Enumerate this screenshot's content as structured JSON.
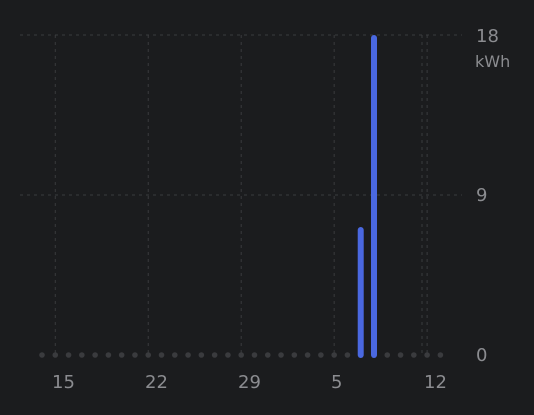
{
  "chart_data": {
    "type": "bar",
    "title": "",
    "xlabel": "",
    "ylabel": "kWh",
    "y_unit": "kWh",
    "ylim": [
      0,
      18
    ],
    "y_ticks": [
      0,
      9,
      18
    ],
    "y_tick_labels": [
      "0",
      "9",
      "18"
    ],
    "x_tick_labels": [
      "15",
      "22",
      "29",
      "5",
      "12"
    ],
    "x_tick_day_index": [
      1,
      8,
      15,
      22,
      29
    ],
    "day_count": 31,
    "bars": [
      {
        "day_index": 24,
        "value": 7.2
      },
      {
        "day_index": 25,
        "value": 18
      }
    ],
    "grid": true,
    "colors": {
      "bar": "#4a68e0",
      "empty_marker": "#3a3b3e",
      "grid": "#3a3b3e",
      "text": "#8b8c90",
      "background": "#1b1c1e"
    }
  }
}
